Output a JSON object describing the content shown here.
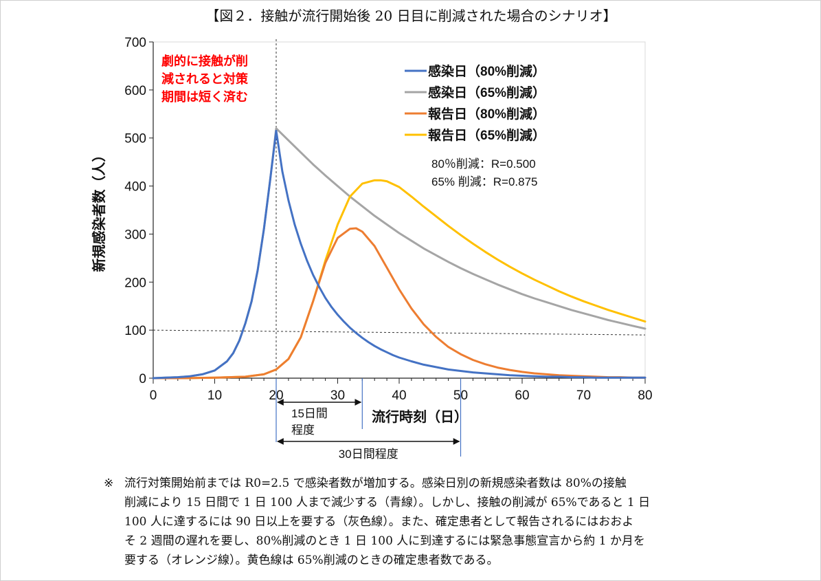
{
  "title": "【図２．接触が流行開始後 20 日目に削減された場合のシナリオ】",
  "chart_data": {
    "type": "line",
    "xlabel": "流行時刻（日）",
    "ylabel": "新規感染者数（人）",
    "xlim": [
      0,
      80
    ],
    "ylim": [
      0,
      700
    ],
    "xticks": [
      "0",
      "10",
      "20",
      "30",
      "40",
      "50",
      "60",
      "70",
      "80"
    ],
    "yticks": [
      "0",
      "100",
      "200",
      "300",
      "400",
      "500",
      "600",
      "700"
    ],
    "legend_position": "top-right",
    "series": [
      {
        "name": "感染日（80%削減）",
        "color": "#4472C4",
        "x": [
          0,
          2,
          4,
          6,
          8,
          10,
          12,
          13,
          14,
          15,
          16,
          17,
          18,
          19,
          20,
          21,
          22,
          23,
          24,
          25,
          26,
          27,
          28,
          29,
          30,
          31,
          32,
          33,
          34,
          35,
          36,
          37,
          38,
          39,
          40,
          42,
          44,
          46,
          48,
          50,
          52,
          54,
          56,
          58,
          60,
          62,
          64,
          66,
          68,
          70,
          72,
          74,
          76,
          78,
          80
        ],
        "y": [
          0,
          1,
          2,
          4,
          8,
          16,
          35,
          52,
          78,
          115,
          160,
          225,
          310,
          410,
          515,
          430,
          370,
          320,
          280,
          245,
          215,
          190,
          167,
          148,
          132,
          118,
          105,
          94,
          84,
          75,
          67,
          60,
          54,
          48,
          43,
          35,
          28,
          23,
          18,
          15,
          12,
          10,
          8,
          6,
          5,
          4,
          3,
          3,
          2,
          2,
          1,
          1,
          1,
          1,
          1
        ]
      },
      {
        "name": "感染日（65%削減）",
        "color": "#A5A5A5",
        "x": [
          0,
          2,
          4,
          6,
          8,
          10,
          12,
          13,
          14,
          15,
          16,
          17,
          18,
          19,
          20,
          22,
          24,
          26,
          28,
          30,
          32,
          34,
          36,
          38,
          40,
          42,
          44,
          46,
          48,
          50,
          52,
          54,
          56,
          58,
          60,
          62,
          64,
          66,
          68,
          70,
          72,
          74,
          76,
          78,
          80
        ],
        "y": [
          0,
          1,
          2,
          4,
          8,
          16,
          35,
          52,
          78,
          115,
          160,
          225,
          310,
          410,
          520,
          495,
          470,
          445,
          422,
          400,
          378,
          358,
          338,
          320,
          302,
          286,
          270,
          256,
          242,
          229,
          217,
          206,
          195,
          185,
          175,
          166,
          158,
          150,
          142,
          135,
          128,
          121,
          115,
          109,
          103
        ]
      },
      {
        "name": "報告日（80%削減）",
        "color": "#ED7D31",
        "x": [
          0,
          5,
          10,
          15,
          18,
          20,
          22,
          24,
          26,
          28,
          30,
          32,
          33,
          34,
          36,
          38,
          40,
          42,
          44,
          46,
          48,
          50,
          52,
          54,
          56,
          58,
          60,
          62,
          64,
          66,
          68,
          70,
          72,
          74,
          76,
          78,
          80
        ],
        "y": [
          0,
          0,
          1,
          3,
          8,
          18,
          40,
          85,
          160,
          240,
          292,
          311,
          312,
          305,
          275,
          230,
          185,
          145,
          112,
          86,
          65,
          50,
          38,
          29,
          22,
          17,
          13,
          10,
          8,
          6,
          5,
          4,
          3,
          2,
          2,
          1,
          1
        ]
      },
      {
        "name": "報告日（65%削減）",
        "color": "#FFC000",
        "x": [
          0,
          5,
          10,
          15,
          18,
          20,
          22,
          24,
          26,
          28,
          30,
          32,
          34,
          36,
          37,
          38,
          40,
          42,
          44,
          46,
          48,
          50,
          52,
          54,
          56,
          58,
          60,
          62,
          64,
          66,
          68,
          70,
          72,
          74,
          76,
          78,
          80
        ],
        "y": [
          0,
          0,
          1,
          3,
          8,
          18,
          40,
          85,
          160,
          245,
          320,
          378,
          405,
          412,
          412,
          410,
          398,
          378,
          357,
          337,
          317,
          298,
          280,
          263,
          247,
          232,
          218,
          205,
          193,
          181,
          170,
          160,
          151,
          142,
          134,
          126,
          118
        ]
      }
    ],
    "reference_lines": [
      {
        "orientation": "vertical",
        "x": 20
      },
      {
        "orientation": "horizontal",
        "y": 100
      }
    ],
    "annotation_red": [
      "劇的に接触が削",
      "減されると対策",
      "期間は短く済む"
    ],
    "annotation_red_color": "#FF0000",
    "r_values": [
      "80％削減：R=0.500",
      "65% 削減：R=0.875"
    ],
    "bracket_15_lines": [
      "15日間",
      "程度"
    ],
    "bracket_15_range": [
      20,
      34
    ],
    "bracket_30_label": "30日間程度",
    "bracket_30_range": [
      20,
      50
    ]
  },
  "note": {
    "mark": "※",
    "lines": [
      "流行対策開始前までは R0=2.5 で感染者数が増加する。感染日別の新規感染者数は 80%の接触",
      "削減により 15 日間で 1 日 100 人まで減少する（青線）。しかし、接触の削減が 65%であると 1 日",
      "100 人に達するには 90 日以上を要する（灰色線）。また、確定患者として報告されるにはおおよ",
      "そ 2 週間の遅れを要し、80%削減のとき 1 日 100 人に到達するには緊急事態宣言から約 1 か月を",
      "要する（オレンジ線）。黄色線は 65%削減のときの確定患者数である。"
    ]
  }
}
